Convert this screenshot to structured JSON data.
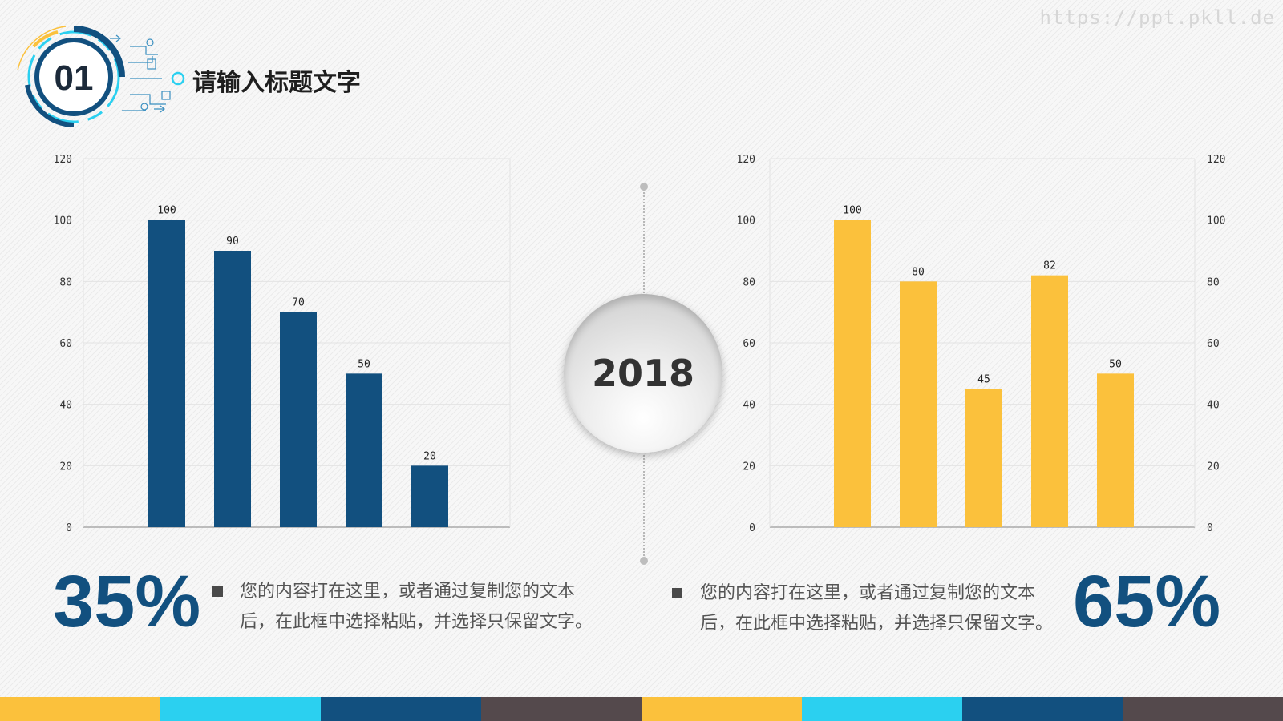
{
  "slide": {
    "number": "01",
    "title": "请输入标题文字",
    "watermark": "https://ppt.pkll.de",
    "year": "2018"
  },
  "colors": {
    "navy": "#12507f",
    "yellow": "#fbc13c",
    "cyan": "#2bd0f0",
    "dark_gray": "#54494c",
    "bottom_bar": [
      "#fbc13c",
      "#2bd0f0",
      "#12507f",
      "#54494c",
      "#fbc13c",
      "#2bd0f0",
      "#12507f",
      "#54494c"
    ]
  },
  "chart_data": [
    {
      "type": "bar",
      "values": [
        100,
        90,
        70,
        50,
        20
      ],
      "ylim": [
        0,
        120
      ],
      "yticks": [
        0,
        20,
        40,
        60,
        80,
        100,
        120
      ],
      "axis_side": "left",
      "color": "#12507f",
      "grid": true
    },
    {
      "type": "bar",
      "values": [
        100,
        80,
        45,
        82,
        50
      ],
      "ylim": [
        0,
        120
      ],
      "yticks": [
        0,
        20,
        40,
        60,
        80,
        100,
        120
      ],
      "axis_side": "both",
      "color": "#fbc13c",
      "grid": true
    }
  ],
  "stats": {
    "left": {
      "percent": "35%",
      "line1": "您的内容打在这里，或者通过复制您的文本",
      "line2": "后，在此框中选择粘贴，并选择只保留文字。"
    },
    "right": {
      "percent": "65%",
      "line1": "您的内容打在这里，或者通过复制您的文本",
      "line2": "后，在此框中选择粘贴，并选择只保留文字。"
    }
  }
}
